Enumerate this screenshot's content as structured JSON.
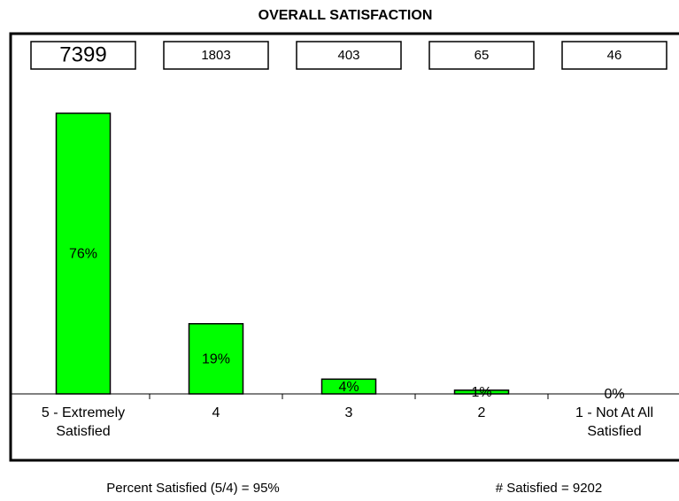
{
  "chart_data": {
    "type": "bar",
    "title": "OVERALL SATISFACTION",
    "categories": [
      "5 - Extremely Satisfied",
      "4",
      "3",
      "2",
      "1 - Not At All Satisfied"
    ],
    "values": [
      76,
      19,
      4,
      1,
      0
    ],
    "value_labels": [
      "76%",
      "19%",
      "4%",
      "1%",
      "0%"
    ],
    "counts": [
      7399,
      1803,
      403,
      65,
      46
    ],
    "color": "#00ff00",
    "footer_left": "Percent Satisfied (5/4) = 95%",
    "footer_right": "# Satisfied = 9202"
  }
}
